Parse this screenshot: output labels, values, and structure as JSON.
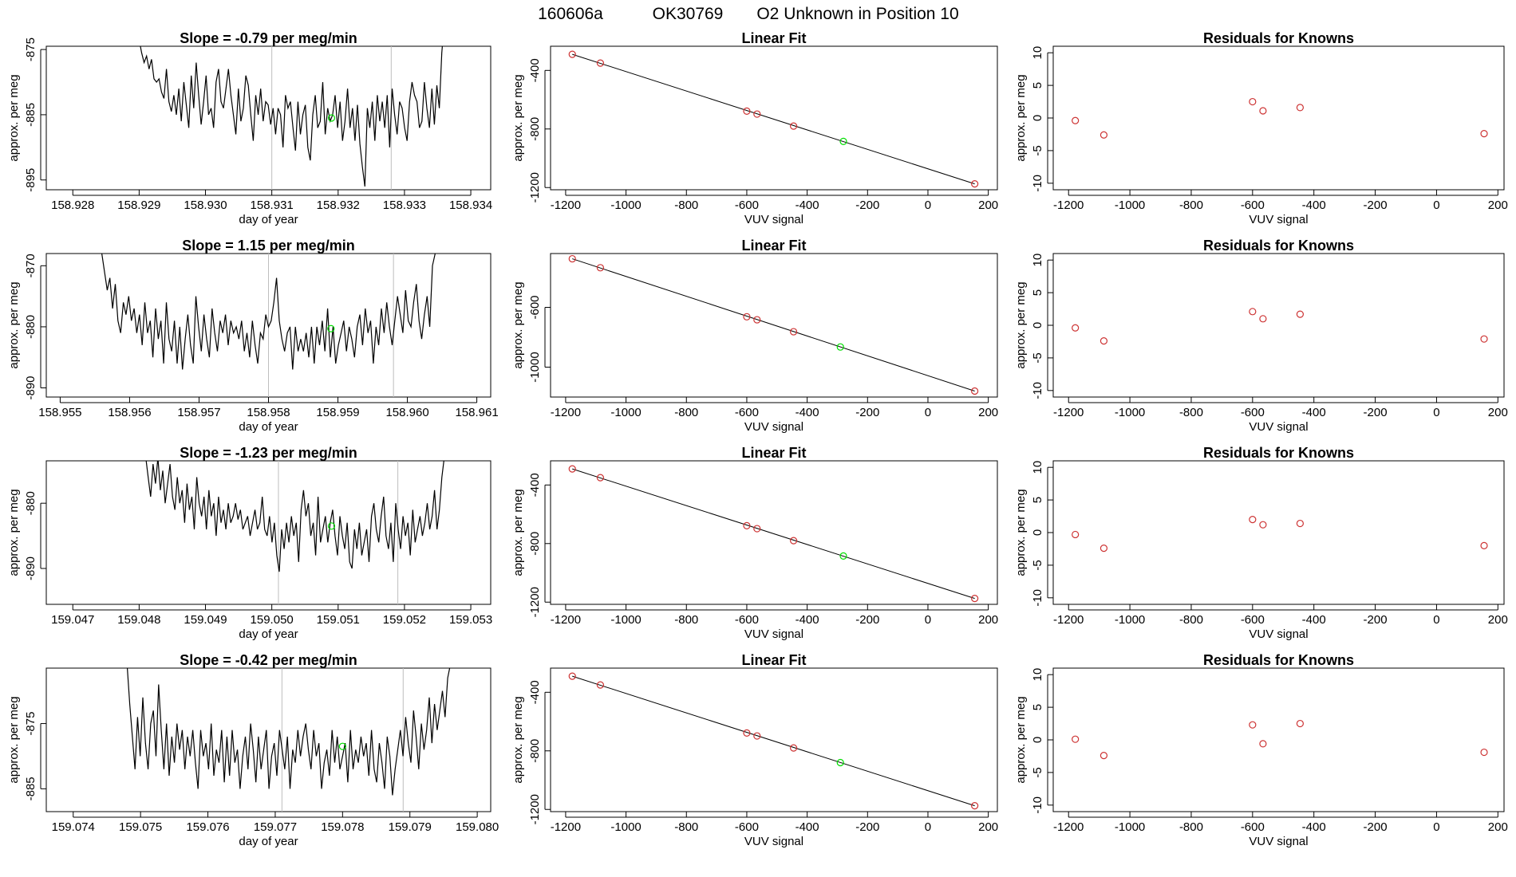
{
  "page_title": {
    "run_id": "160606a",
    "tank_id": "OK30769",
    "description": "O2 Unknown in Position  10"
  },
  "colors": {
    "ink": "#000000",
    "known_point": "#cd3333",
    "unknown_point": "#00dd00",
    "guide_line": "#bebebe"
  },
  "chart_data": [
    {
      "type": "line",
      "title": "Slope =  -0.79  per meg/min",
      "xlabel": "day of year",
      "ylabel": "approx. per meg",
      "xlim": [
        158.9276,
        158.9343
      ],
      "ylim": [
        -896.5,
        -874.5
      ],
      "xticks": [
        "158.928",
        "158.929",
        "158.930",
        "158.931",
        "158.932",
        "158.933",
        "158.934"
      ],
      "yticks": [
        "-875",
        "-885",
        "-895"
      ],
      "vlines": [
        158.931,
        158.9328
      ],
      "highlight": {
        "x": 158.9319,
        "y": -885.5
      },
      "series": {
        "x_start": 158.929,
        "x_end": 158.9336,
        "y": [
          -873.5,
          -875.5,
          -877,
          -876,
          -878,
          -876.5,
          -879.5,
          -880,
          -879.5,
          -881.5,
          -882.5,
          -878,
          -883,
          -884.5,
          -882,
          -885,
          -881,
          -886,
          -880,
          -883.5,
          -887,
          -879,
          -884,
          -877,
          -882,
          -886.5,
          -883,
          -879,
          -885,
          -884,
          -887,
          -880,
          -878,
          -883,
          -884,
          -881,
          -878,
          -882,
          -885,
          -888,
          -881,
          -886,
          -884,
          -879,
          -880.5,
          -885,
          -889,
          -882,
          -885,
          -881,
          -886,
          -883,
          -883.5,
          -886.5,
          -884,
          -888,
          -884,
          -885,
          -890,
          -882,
          -884,
          -883,
          -887,
          -890.5,
          -883,
          -888,
          -885,
          -883.5,
          -890,
          -892,
          -885,
          -882,
          -887,
          -886,
          -880,
          -888,
          -884,
          -886,
          -885,
          -882,
          -887,
          -883,
          -889,
          -886,
          -881,
          -887,
          -884,
          -889,
          -883.5,
          -889.5,
          -893,
          -896,
          -884,
          -887,
          -883,
          -889,
          -882,
          -886,
          -883,
          -887,
          -882,
          -890,
          -881,
          -885,
          -888,
          -883,
          -884,
          -887,
          -889,
          -883,
          -880,
          -882,
          -883,
          -887,
          -886,
          -880,
          -884,
          -887,
          -881,
          -886.5,
          -880.5,
          -884,
          -875.5,
          -871
        ]
      }
    },
    {
      "type": "scatter",
      "title": "Linear Fit",
      "xlabel": "VUV signal",
      "ylabel": "approx. per meg",
      "xlim": [
        -1250,
        230
      ],
      "ylim": [
        -1215,
        -235
      ],
      "xticks": [
        -1200,
        -1000,
        -800,
        -600,
        -400,
        -200,
        0,
        200
      ],
      "yticks": [
        -400,
        -800,
        -1200
      ],
      "fit_line": [
        [
          -1178,
          -290
        ],
        [
          155,
          -1175
        ]
      ],
      "knowns": [
        [
          -1178,
          -290
        ],
        [
          -1085,
          -350
        ],
        [
          -600,
          -678
        ],
        [
          -566,
          -698
        ],
        [
          -445,
          -780
        ],
        [
          155,
          -1175
        ]
      ],
      "unknown": [
        -280,
        -885
      ]
    },
    {
      "type": "scatter",
      "title": "Residuals for Knowns",
      "xlabel": "VUV signal",
      "ylabel": "approx. per meg",
      "xlim": [
        -1250,
        220
      ],
      "ylim": [
        -11,
        11
      ],
      "xticks": [
        -1200,
        -1000,
        -800,
        -600,
        -400,
        -200,
        0,
        200
      ],
      "yticks": [
        10,
        5,
        0,
        -5,
        -10
      ],
      "knowns": [
        [
          -1178,
          -0.4
        ],
        [
          -1085,
          -2.6
        ],
        [
          -600,
          2.5
        ],
        [
          -566,
          1.1
        ],
        [
          -445,
          1.6
        ],
        [
          155,
          -2.4
        ]
      ]
    },
    {
      "type": "line",
      "title": "Slope =  1.15  per meg/min",
      "xlabel": "day of year",
      "ylabel": "approx. per meg",
      "xlim": [
        158.9548,
        158.9612
      ],
      "ylim": [
        -891.5,
        -868
      ],
      "xticks": [
        "158.955",
        "158.956",
        "158.957",
        "158.958",
        "158.959",
        "158.960",
        "158.961"
      ],
      "yticks": [
        "-870",
        "-880",
        "-890"
      ],
      "vlines": [
        158.958,
        158.9598
      ],
      "highlight": {
        "x": 158.9589,
        "y": -880.3
      },
      "series": {
        "x_start": 158.9556,
        "x_end": 158.9604,
        "y": [
          -868,
          -871,
          -874,
          -872,
          -877,
          -873,
          -879,
          -881,
          -876,
          -878,
          -875,
          -879,
          -877,
          -881,
          -878,
          -883,
          -876,
          -881,
          -879,
          -885,
          -877,
          -882,
          -879,
          -886,
          -876,
          -882,
          -884,
          -879,
          -886,
          -880,
          -887,
          -882,
          -878,
          -883,
          -886,
          -875,
          -880,
          -884,
          -878,
          -882,
          -885,
          -877,
          -881,
          -884,
          -879,
          -881,
          -878,
          -883,
          -879,
          -881,
          -880,
          -882,
          -879,
          -884,
          -881,
          -885,
          -879,
          -883,
          -886,
          -881,
          -882,
          -878,
          -880,
          -879,
          -876,
          -872,
          -879,
          -882,
          -884,
          -881,
          -880,
          -887,
          -880,
          -884,
          -882,
          -884,
          -881,
          -885,
          -880,
          -886,
          -880,
          -883,
          -879,
          -884,
          -877,
          -885,
          -880,
          -886,
          -883,
          -881,
          -879,
          -884,
          -880,
          -882,
          -885,
          -880,
          -878,
          -883,
          -877,
          -881,
          -879,
          -886,
          -880,
          -883,
          -877,
          -881,
          -876,
          -880,
          -883,
          -879,
          -875,
          -878,
          -881,
          -874,
          -879,
          -880,
          -876,
          -873,
          -879,
          -882,
          -878,
          -875,
          -880,
          -870,
          -868
        ]
      }
    },
    {
      "type": "scatter",
      "title": "Linear Fit",
      "xlabel": "VUV signal",
      "ylabel": "approx. per meg",
      "xlim": [
        -1250,
        230
      ],
      "ylim": [
        -1200,
        -240
      ],
      "xticks": [
        -1200,
        -1000,
        -800,
        -600,
        -400,
        -200,
        0,
        200
      ],
      "yticks": [
        -600,
        -1000
      ],
      "fit_line": [
        [
          -1178,
          -275
        ],
        [
          155,
          -1160
        ]
      ],
      "knowns": [
        [
          -1178,
          -275
        ],
        [
          -1085,
          -335
        ],
        [
          -600,
          -663
        ],
        [
          -566,
          -683
        ],
        [
          -445,
          -763
        ],
        [
          155,
          -1160
        ]
      ],
      "unknown": [
        -290,
        -865
      ]
    },
    {
      "type": "scatter",
      "title": "Residuals for Knowns",
      "xlabel": "VUV signal",
      "ylabel": "approx. per meg",
      "xlim": [
        -1250,
        220
      ],
      "ylim": [
        -11,
        11
      ],
      "xticks": [
        -1200,
        -1000,
        -800,
        -600,
        -400,
        -200,
        0,
        200
      ],
      "yticks": [
        10,
        5,
        0,
        -5,
        -10
      ],
      "knowns": [
        [
          -1178,
          -0.4
        ],
        [
          -1085,
          -2.4
        ],
        [
          -600,
          2.1
        ],
        [
          -566,
          1.0
        ],
        [
          -445,
          1.7
        ],
        [
          155,
          -2.1
        ]
      ]
    },
    {
      "type": "line",
      "title": "Slope =  -1.23  per meg/min",
      "xlabel": "day of year",
      "ylabel": "approx. per meg",
      "xlim": [
        159.0466,
        159.0533
      ],
      "ylim": [
        -895.5,
        -873.5
      ],
      "xticks": [
        "159.047",
        "159.048",
        "159.049",
        "159.050",
        "159.051",
        "159.052",
        "159.053"
      ],
      "yticks": [
        "-880",
        "-890"
      ],
      "vlines": [
        159.0501,
        159.0519
      ],
      "highlight": {
        "x": 159.0509,
        "y": -883.5
      },
      "series": {
        "x_start": 159.0481,
        "x_end": 159.0526,
        "y": [
          -873,
          -876,
          -879,
          -874,
          -877,
          -873,
          -878,
          -875,
          -880,
          -877,
          -874,
          -879,
          -881,
          -876,
          -880,
          -878,
          -883,
          -877,
          -881,
          -879,
          -884,
          -876,
          -880,
          -882,
          -879,
          -884,
          -878,
          -882,
          -880,
          -885,
          -879,
          -883,
          -881,
          -884,
          -880,
          -883,
          -882,
          -880,
          -882.5,
          -881,
          -884,
          -883,
          -882,
          -885,
          -883,
          -881,
          -884,
          -883,
          -879,
          -884,
          -885,
          -882,
          -886,
          -883,
          -888,
          -890.5,
          -884,
          -887,
          -883,
          -886,
          -882,
          -885,
          -883,
          -889,
          -881,
          -878,
          -882,
          -880,
          -885,
          -883,
          -888,
          -879,
          -886,
          -884,
          -882,
          -886,
          -883,
          -881,
          -885,
          -888,
          -882,
          -885,
          -887,
          -883,
          -889,
          -890,
          -884,
          -887,
          -883,
          -888,
          -886,
          -884,
          -889,
          -882,
          -880,
          -884,
          -886,
          -882,
          -879,
          -885,
          -887,
          -883,
          -889,
          -880,
          -884,
          -887,
          -882,
          -885,
          -883,
          -888,
          -881,
          -886,
          -884,
          -882,
          -885,
          -883,
          -880,
          -884,
          -882,
          -878,
          -884,
          -881,
          -876,
          -873
        ]
      }
    },
    {
      "type": "scatter",
      "title": "Linear Fit",
      "xlabel": "VUV signal",
      "ylabel": "approx. per meg",
      "xlim": [
        -1250,
        230
      ],
      "ylim": [
        -1215,
        -235
      ],
      "xticks": [
        -1200,
        -1000,
        -800,
        -600,
        -400,
        -200,
        0,
        200
      ],
      "yticks": [
        -400,
        -800,
        -1200
      ],
      "fit_line": [
        [
          -1178,
          -290
        ],
        [
          155,
          -1175
        ]
      ],
      "knowns": [
        [
          -1178,
          -290
        ],
        [
          -1085,
          -350
        ],
        [
          -600,
          -678
        ],
        [
          -566,
          -698
        ],
        [
          -445,
          -780
        ],
        [
          155,
          -1175
        ]
      ],
      "unknown": [
        -280,
        -885
      ]
    },
    {
      "type": "scatter",
      "title": "Residuals for Knowns",
      "xlabel": "VUV signal",
      "ylabel": "approx. per meg",
      "xlim": [
        -1250,
        220
      ],
      "ylim": [
        -11,
        11
      ],
      "xticks": [
        -1200,
        -1000,
        -800,
        -600,
        -400,
        -200,
        0,
        200
      ],
      "yticks": [
        10,
        5,
        0,
        -5,
        -10
      ],
      "knowns": [
        [
          -1178,
          -0.3
        ],
        [
          -1085,
          -2.4
        ],
        [
          -600,
          2.0
        ],
        [
          -566,
          1.2
        ],
        [
          -445,
          1.4
        ],
        [
          155,
          -2.0
        ]
      ]
    },
    {
      "type": "line",
      "title": "Slope =  -0.42  per meg/min",
      "xlabel": "day of year",
      "ylabel": "approx. per meg",
      "xlim": [
        159.0736,
        159.0802
      ],
      "ylim": [
        -888.5,
        -866.5
      ],
      "xticks": [
        "159.074",
        "159.075",
        "159.076",
        "159.077",
        "159.078",
        "159.079",
        "159.080"
      ],
      "yticks": [
        "-875",
        "-885"
      ],
      "vlines": [
        159.0771,
        159.0789
      ],
      "highlight": {
        "x": 159.078,
        "y": -878.5
      },
      "series": {
        "x_start": 159.0748,
        "x_end": 159.0796,
        "y": [
          -866,
          -872,
          -877,
          -882,
          -874,
          -880,
          -871,
          -878,
          -882,
          -875,
          -873,
          -880,
          -869,
          -876,
          -882,
          -875,
          -883,
          -877,
          -881,
          -875,
          -879,
          -876,
          -882,
          -877,
          -880,
          -876,
          -881,
          -885,
          -876,
          -880,
          -878,
          -882,
          -875,
          -883,
          -879,
          -881,
          -876,
          -884,
          -877,
          -883,
          -876,
          -881,
          -879,
          -885,
          -880,
          -877,
          -882,
          -875,
          -879,
          -884,
          -877,
          -882,
          -879,
          -876,
          -885,
          -880,
          -878,
          -883,
          -876,
          -879,
          -882,
          -877,
          -885,
          -879,
          -881,
          -876,
          -880,
          -877,
          -875,
          -879,
          -882,
          -876,
          -880,
          -878,
          -885,
          -881,
          -879,
          -883,
          -876,
          -881,
          -877,
          -882,
          -880,
          -878,
          -884,
          -876,
          -882,
          -879,
          -881,
          -877,
          -880,
          -878,
          -883,
          -876,
          -882,
          -884,
          -878,
          -881,
          -885,
          -877,
          -880,
          -886,
          -882,
          -879,
          -876,
          -880,
          -874,
          -878,
          -881,
          -873,
          -877,
          -882,
          -875,
          -879,
          -876,
          -871,
          -878,
          -872,
          -876,
          -873,
          -870,
          -874,
          -868,
          -866
        ]
      }
    },
    {
      "type": "scatter",
      "title": "Linear Fit",
      "xlabel": "VUV signal",
      "ylabel": "approx. per meg",
      "xlim": [
        -1250,
        230
      ],
      "ylim": [
        -1215,
        -235
      ],
      "xticks": [
        -1200,
        -1000,
        -800,
        -600,
        -400,
        -200,
        0,
        200
      ],
      "yticks": [
        -400,
        -800,
        -1200
      ],
      "fit_line": [
        [
          -1178,
          -290
        ],
        [
          155,
          -1175
        ]
      ],
      "knowns": [
        [
          -1178,
          -290
        ],
        [
          -1085,
          -350
        ],
        [
          -600,
          -678
        ],
        [
          -566,
          -698
        ],
        [
          -445,
          -780
        ],
        [
          155,
          -1175
        ]
      ],
      "unknown": [
        -290,
        -880
      ]
    },
    {
      "type": "scatter",
      "title": "Residuals for Knowns",
      "xlabel": "VUV signal",
      "ylabel": "approx. per meg",
      "xlim": [
        -1250,
        220
      ],
      "ylim": [
        -11,
        11
      ],
      "xticks": [
        -1200,
        -1000,
        -800,
        -600,
        -400,
        -200,
        0,
        200
      ],
      "yticks": [
        10,
        5,
        0,
        -5,
        -10
      ],
      "knowns": [
        [
          -1178,
          0.1
        ],
        [
          -1085,
          -2.4
        ],
        [
          -600,
          2.3
        ],
        [
          -566,
          -0.6
        ],
        [
          -445,
          2.5
        ],
        [
          155,
          -1.9
        ]
      ]
    }
  ]
}
